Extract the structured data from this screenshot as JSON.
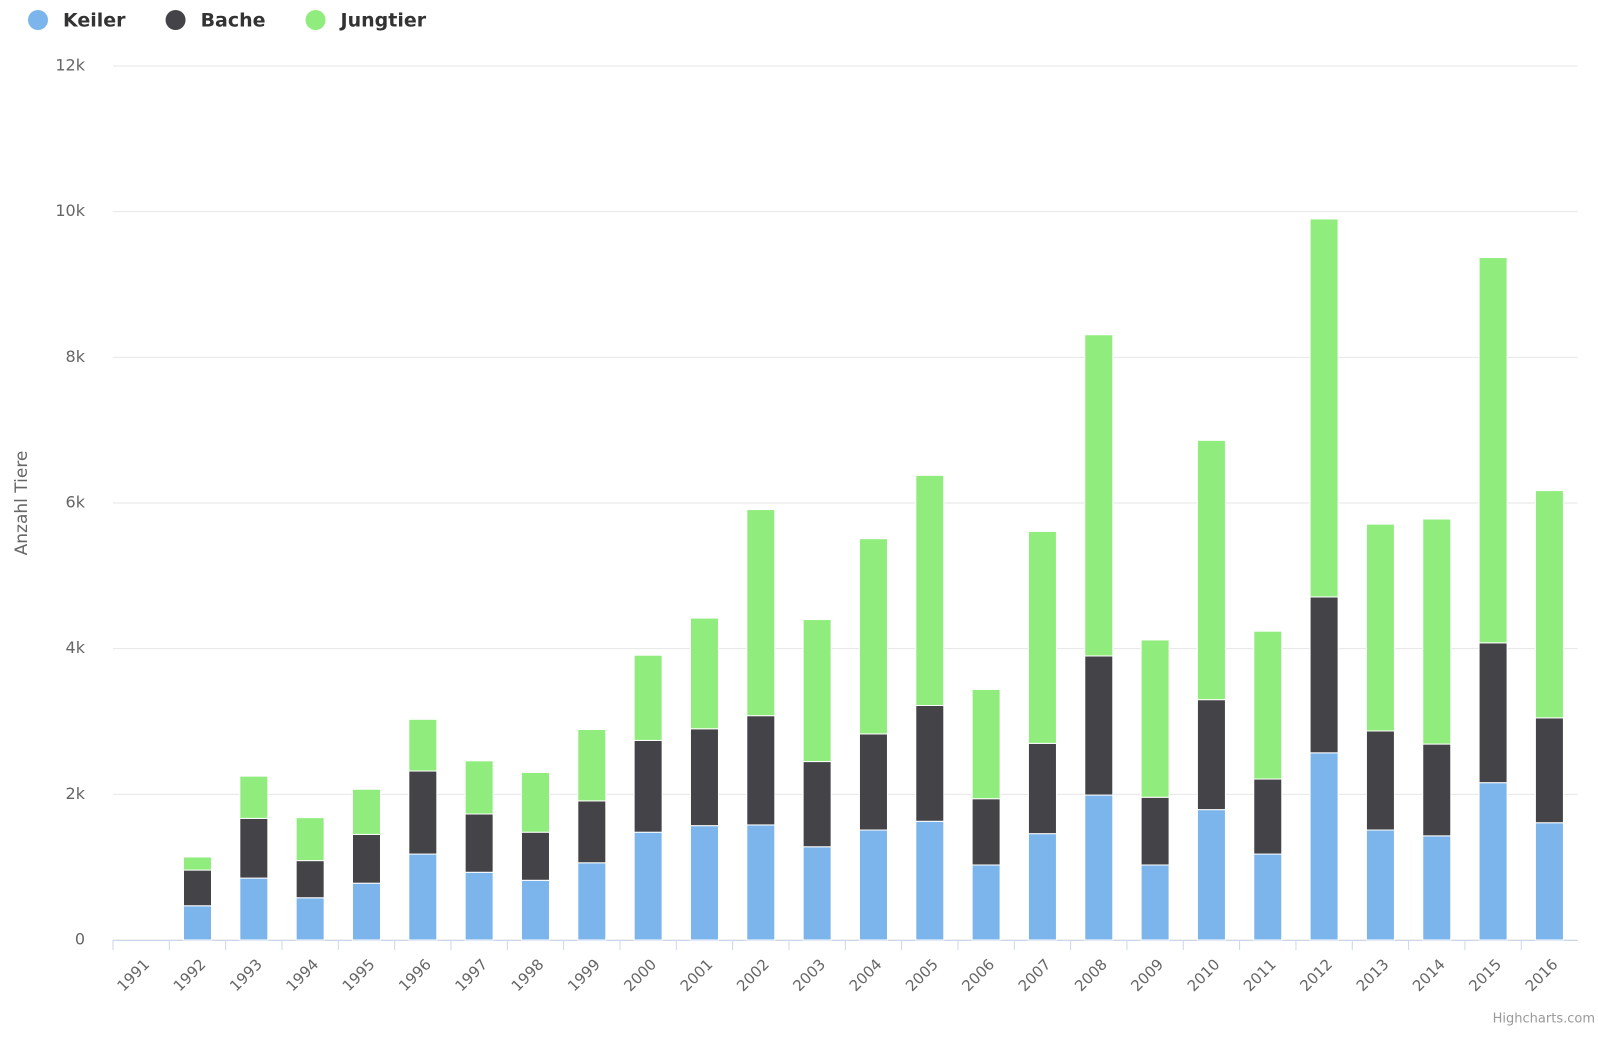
{
  "chart_data": {
    "type": "stacked-bar",
    "y_label": "Anzahl Tiere",
    "credit": "Highcharts.com",
    "categories": [
      "1991",
      "1992",
      "1993",
      "1994",
      "1995",
      "1996",
      "1997",
      "1998",
      "1999",
      "2000",
      "2001",
      "2002",
      "2003",
      "2004",
      "2005",
      "2006",
      "2007",
      "2008",
      "2009",
      "2010",
      "2011",
      "2012",
      "2013",
      "2014",
      "2015",
      "2016"
    ],
    "series": [
      {
        "name": "Keiler",
        "color": "#7cb5ec",
        "values": [
          0,
          470,
          850,
          580,
          780,
          1180,
          930,
          820,
          1060,
          1480,
          1570,
          1580,
          1280,
          1510,
          1630,
          1030,
          1460,
          1990,
          1030,
          1790,
          1180,
          2570,
          1510,
          1430,
          2160,
          1610
        ]
      },
      {
        "name": "Bache",
        "color": "#434348",
        "values": [
          0,
          490,
          820,
          510,
          670,
          1140,
          800,
          660,
          850,
          1260,
          1330,
          1500,
          1170,
          1320,
          1590,
          910,
          1240,
          1910,
          930,
          1510,
          1030,
          2140,
          1360,
          1260,
          1920,
          1440
        ]
      },
      {
        "name": "Jungtier",
        "color": "#90ed7d",
        "values": [
          0,
          180,
          580,
          590,
          620,
          710,
          730,
          820,
          980,
          1170,
          1520,
          2830,
          1950,
          2680,
          3160,
          1500,
          2910,
          4410,
          2160,
          3560,
          2030,
          5190,
          2840,
          3090,
          5290,
          3120
        ]
      }
    ],
    "ylim": [
      0,
      12000
    ],
    "yticks": [
      0,
      {
        "value": 2000,
        "label": "2k"
      },
      {
        "value": 4000,
        "label": "4k"
      },
      {
        "value": 6000,
        "label": "6k"
      },
      {
        "value": 8000,
        "label": "8k"
      },
      {
        "value": 10000,
        "label": "10k"
      },
      {
        "value": 12000,
        "label": "12k"
      }
    ],
    "grid": true,
    "legend": "top-left"
  }
}
